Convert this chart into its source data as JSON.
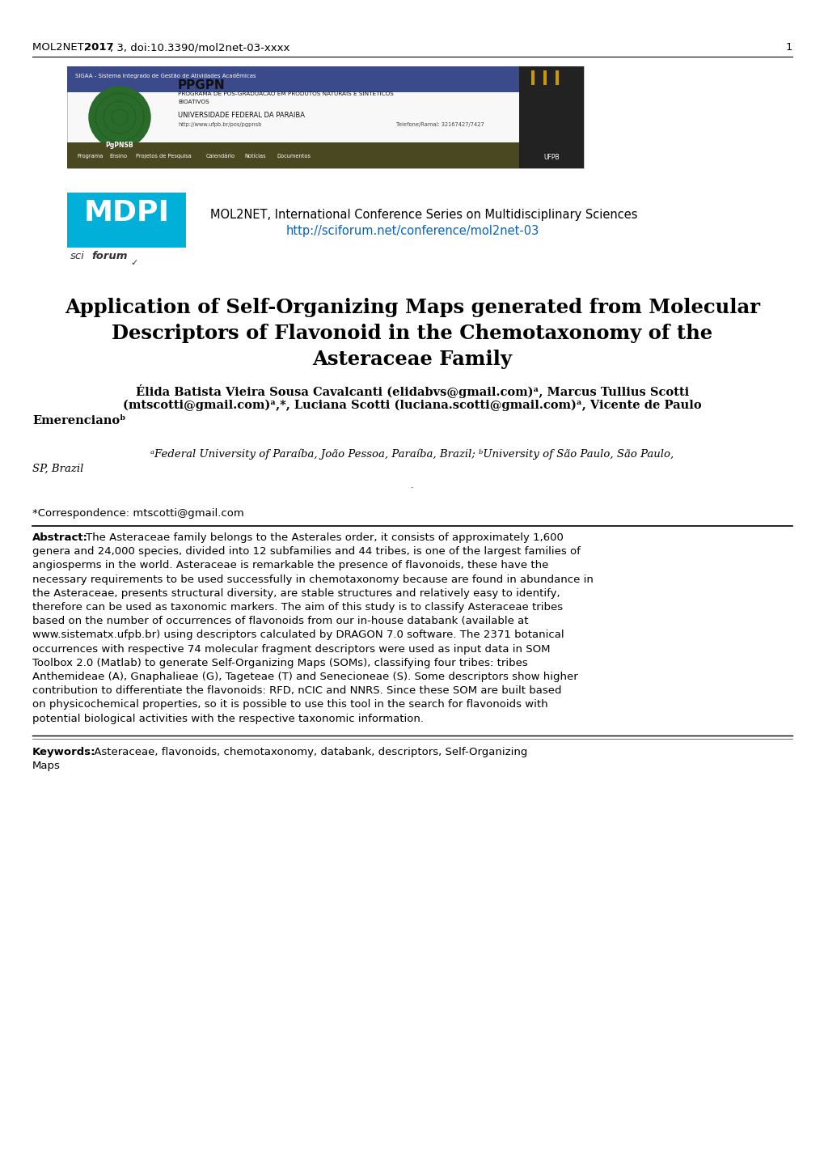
{
  "header_line": "MOL2NET, 2017, 3, doi:10.3390/mol2net-03-xxxx",
  "page_number": "1",
  "journal_line": "MOL2NET, International Conference Series on Multidisciplinary Sciences",
  "url": "http://sciforum.net/conference/mol2net-03",
  "paper_title_line1": "Application of Self-Organizing Maps generated from Molecular",
  "paper_title_line2": "Descriptors of Flavonoid in the Chemotaxonomy of the",
  "paper_title_line3": "Asteraceae Family",
  "authors_line1": "Élida Batista Vieira Sousa Cavalcanti (elidabvs@gmail.com)ᵃ, Marcus Tullius Scotti",
  "authors_line2": "(mtscotti@gmail.com)ᵃ,*, Luciana Scotti (luciana.scotti@gmail.com)ᵃ, Vicente de Paulo",
  "authors_line3": "Emerencianoᵇ",
  "affiliation1": "ᵃFederal University of Paraíba, João Pessoa, Paraíba, Brazil; ᵇUniversity of São Paulo, São Paulo,",
  "affiliation2": "SP, Brazil",
  "correspondence": "*Correspondence: mtscotti@gmail.com",
  "abstract_bold": "Abstract:",
  "abstract_lines": [
    "The Asteraceae family belongs to the Asterales order, it consists of approximately 1,600",
    "genera and 24,000 species, divided into 12 subfamilies and 44 tribes, is one of the largest families of",
    "angiosperms in the world. Asteraceae is remarkable the presence of flavonoids, these have the",
    "necessary requirements to be used successfully in chemotaxonomy because are found in abundance in",
    "the Asteraceae, presents structural diversity, are stable structures and relatively easy to identify,",
    "therefore can be used as taxonomic markers. The aim of this study is to classify Asteraceae tribes",
    "based on the number of occurrences of flavonoids from our in-house databank (available at",
    "www.sistematx.ufpb.br) using descriptors calculated by DRAGON 7.0 software. The 2371 botanical",
    "occurrences with respective 74 molecular fragment descriptors were used as input data in SOM",
    "Toolbox 2.0 (Matlab) to generate Self-Organizing Maps (SOMs), classifying four tribes: tribes",
    "Anthemideae (A), Gnaphalieae (G), Tageteae (T) and Senecioneae (S). Some descriptors show higher",
    "contribution to differentiate the flavonoids: RFD, nCIC and NNRS. Since these SOM are built based",
    "on physicochemical properties, so it is possible to use this tool in the search for flavonoids with",
    "potential biological activities with the respective taxonomic information."
  ],
  "keywords_bold": "Keywords:",
  "keywords_line1": " Asteraceae, flavonoids, chemotaxonomy, databank, descriptors, Self-Organizing",
  "keywords_line2": "Maps",
  "bg_color": "#ffffff",
  "text_color": "#000000",
  "url_color": "#0563c1",
  "mdpi_bg": "#00b0d8",
  "mdpi_text": "#ffffff",
  "banner_blue": "#3a4a8a",
  "banner_body": "#f8f8f8",
  "banner_nav": "#4a4820",
  "nav_items": [
    "Programa",
    "Ensino",
    "Projetos de Pesquisa",
    "Calendário",
    "Notícias",
    "Documentos"
  ]
}
